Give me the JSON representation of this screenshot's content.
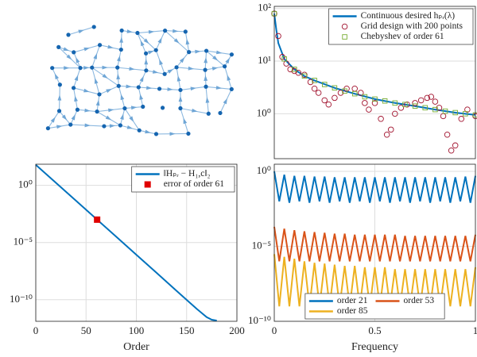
{
  "chart_data": [
    {
      "type": "line",
      "log_y": true,
      "grid": true,
      "legend": "upper right",
      "xlim": [
        0,
        1
      ],
      "ylim": [
        0.14,
        110
      ],
      "yticks": [
        {
          "value": 1,
          "label": "10⁰"
        },
        {
          "value": 10,
          "label": "10¹"
        },
        {
          "value": 100,
          "label": "10²"
        }
      ],
      "series": [
        {
          "name": "Continuous desired hₚᵣ(λ)",
          "color": "#0072bd",
          "style": "line",
          "x": [
            0,
            0.01,
            0.02,
            0.05,
            0.1,
            0.15,
            0.2,
            0.3,
            0.4,
            0.5,
            0.6,
            0.7,
            0.8,
            0.9,
            1
          ],
          "values": [
            80,
            40,
            22,
            11,
            7,
            5.2,
            4.3,
            3.1,
            2.4,
            1.9,
            1.6,
            1.4,
            1.2,
            1.05,
            0.95
          ]
        },
        {
          "name": "Grid design with 200 points",
          "color": "#a2142f",
          "style": "circle",
          "x": [
            0,
            0.02,
            0.04,
            0.06,
            0.08,
            0.1,
            0.12,
            0.15,
            0.18,
            0.2,
            0.22,
            0.25,
            0.27,
            0.3,
            0.33,
            0.36,
            0.4,
            0.43,
            0.45,
            0.47,
            0.5,
            0.53,
            0.56,
            0.58,
            0.6,
            0.63,
            0.66,
            0.7,
            0.73,
            0.76,
            0.78,
            0.8,
            0.82,
            0.84,
            0.86,
            0.88,
            0.9,
            0.93,
            0.96,
            1
          ],
          "values": [
            80,
            30,
            12,
            9,
            7,
            6.5,
            6,
            5.5,
            4,
            3,
            2.5,
            1.8,
            1.5,
            2,
            2.5,
            3,
            3,
            2.5,
            1.6,
            1.2,
            1.6,
            0.8,
            0.4,
            0.5,
            1,
            1.3,
            1.5,
            1.6,
            1.8,
            2,
            2.1,
            1.7,
            1.3,
            0.9,
            0.4,
            0.2,
            0.25,
            0.8,
            1.2,
            0.9
          ]
        },
        {
          "name": "Chebyshev of order 61",
          "color": "#77ac30",
          "style": "square",
          "x": [
            0,
            0.05,
            0.1,
            0.15,
            0.2,
            0.25,
            0.3,
            0.35,
            0.4,
            0.45,
            0.5,
            0.55,
            0.6,
            0.65,
            0.7,
            0.75,
            0.8,
            0.85,
            0.9,
            0.95,
            1
          ],
          "values": [
            80,
            11,
            7,
            5.2,
            4.3,
            3.6,
            3.1,
            2.7,
            2.4,
            2.1,
            1.9,
            1.75,
            1.6,
            1.5,
            1.4,
            1.3,
            1.2,
            1.12,
            1.05,
            1.0,
            0.95
          ]
        }
      ]
    },
    {
      "type": "line",
      "log_y": true,
      "grid": true,
      "legend": "upper right",
      "x_label": "Order",
      "xlim": [
        0,
        200
      ],
      "ylim": [
        1.3e-12,
        70
      ],
      "xticks": [
        0,
        50,
        100,
        150,
        200
      ],
      "yticks": [
        {
          "value": 1,
          "label": "10⁰"
        },
        {
          "value": 1e-05,
          "label": "10⁻⁵"
        },
        {
          "value": 1e-10,
          "label": "10⁻¹⁰"
        }
      ],
      "series": [
        {
          "name": "‖Hₚᵣ − H₁,c‖₂",
          "color": "#0072bd",
          "style": "line",
          "x": [
            0,
            20,
            40,
            61,
            80,
            100,
            120,
            140,
            160,
            170,
            175,
            180
          ],
          "values": [
            63,
            1.68,
            0.045,
            0.001,
            3.2e-05,
            8.5e-07,
            2.3e-08,
            6e-10,
            1.6e-11,
            3e-12,
            1.8e-12,
            1.5e-12
          ]
        },
        {
          "name": "error of order 61",
          "color": "#e00000",
          "style": "filled-square",
          "x": [
            61
          ],
          "values": [
            0.001
          ]
        }
      ]
    },
    {
      "type": "line",
      "log_y": true,
      "grid": true,
      "legend": "lower center",
      "legend_columns": 2,
      "x_label": "Frequency",
      "xlim": [
        0,
        1
      ],
      "ylim": [
        1e-10,
        3
      ],
      "xticks": [
        0,
        0.5,
        1
      ],
      "yticks": [
        {
          "value": 1,
          "label": "10⁰"
        },
        {
          "value": 1e-05,
          "label": "10⁻⁵"
        },
        {
          "value": 1e-10,
          "label": "10⁻¹⁰"
        }
      ],
      "series": [
        {
          "name": "order 21",
          "color": "#0072bd",
          "style": "line",
          "x": [
            0,
            0.025,
            0.05,
            0.075,
            0.1,
            0.125,
            0.15,
            0.175,
            0.2,
            0.225,
            0.25,
            0.275,
            0.3,
            0.325,
            0.35,
            0.375,
            0.4,
            0.425,
            0.45,
            0.475,
            0.5,
            0.525,
            0.55,
            0.575,
            0.6,
            0.625,
            0.65,
            0.675,
            0.7,
            0.725,
            0.75,
            0.775,
            0.8,
            0.825,
            0.85,
            0.875,
            0.9,
            0.925,
            0.95,
            0.975,
            1
          ],
          "values": [
            1,
            0.01,
            0.6,
            0.008,
            0.5,
            0.01,
            0.5,
            0.008,
            0.45,
            0.01,
            0.45,
            0.008,
            0.4,
            0.01,
            0.4,
            0.008,
            0.4,
            0.01,
            0.4,
            0.008,
            0.4,
            0.01,
            0.4,
            0.008,
            0.4,
            0.01,
            0.4,
            0.008,
            0.4,
            0.01,
            0.4,
            0.008,
            0.4,
            0.01,
            0.4,
            0.008,
            0.4,
            0.01,
            0.45,
            0.008,
            0.5
          ]
        },
        {
          "name": "order 53",
          "color": "#d95319",
          "style": "line",
          "x": [
            0,
            0.025,
            0.05,
            0.075,
            0.1,
            0.125,
            0.15,
            0.175,
            0.2,
            0.225,
            0.25,
            0.275,
            0.3,
            0.325,
            0.35,
            0.375,
            0.4,
            0.425,
            0.45,
            0.475,
            0.5,
            0.525,
            0.55,
            0.575,
            0.6,
            0.625,
            0.65,
            0.675,
            0.7,
            0.725,
            0.75,
            0.775,
            0.8,
            0.825,
            0.85,
            0.875,
            0.9,
            0.925,
            0.95,
            0.975,
            1
          ],
          "values": [
            0.0002,
            1e-06,
            0.00015,
            1e-06,
            0.00012,
            1e-06,
            0.0001,
            1e-06,
            9e-05,
            1e-06,
            8e-05,
            1e-06,
            7e-05,
            1e-06,
            7e-05,
            1e-06,
            6e-05,
            1e-06,
            6e-05,
            1e-06,
            6e-05,
            1e-06,
            6e-05,
            1e-06,
            6e-05,
            1e-06,
            5e-05,
            1e-06,
            5e-05,
            1e-06,
            5e-05,
            1e-06,
            5e-05,
            1e-06,
            5e-05,
            1e-06,
            5e-05,
            1e-06,
            5e-05,
            1e-06,
            6e-05
          ]
        },
        {
          "name": "order 85",
          "color": "#edb120",
          "style": "line",
          "x": [
            0,
            0.025,
            0.05,
            0.075,
            0.1,
            0.125,
            0.15,
            0.175,
            0.2,
            0.225,
            0.25,
            0.275,
            0.3,
            0.325,
            0.35,
            0.375,
            0.4,
            0.425,
            0.45,
            0.475,
            0.5,
            0.525,
            0.55,
            0.575,
            0.6,
            0.625,
            0.65,
            0.675,
            0.7,
            0.725,
            0.75,
            0.775,
            0.8,
            0.825,
            0.85,
            0.875,
            0.9,
            0.925,
            0.95,
            0.975,
            1
          ],
          "values": [
            3e-06,
            1e-09,
            2e-06,
            1e-09,
            1.5e-06,
            1e-09,
            1e-06,
            1e-09,
            8e-07,
            1e-09,
            7e-07,
            1e-09,
            6e-07,
            1e-09,
            5e-07,
            1e-09,
            5e-07,
            1e-09,
            4e-07,
            1e-09,
            4e-07,
            1e-09,
            4e-07,
            1e-09,
            3e-07,
            1e-09,
            3e-07,
            1e-09,
            3e-07,
            1e-09,
            3e-07,
            1e-09,
            3e-07,
            1e-09,
            3e-07,
            1e-09,
            3e-07,
            1e-09,
            3e-07,
            1e-09,
            4e-07
          ]
        }
      ]
    }
  ]
}
